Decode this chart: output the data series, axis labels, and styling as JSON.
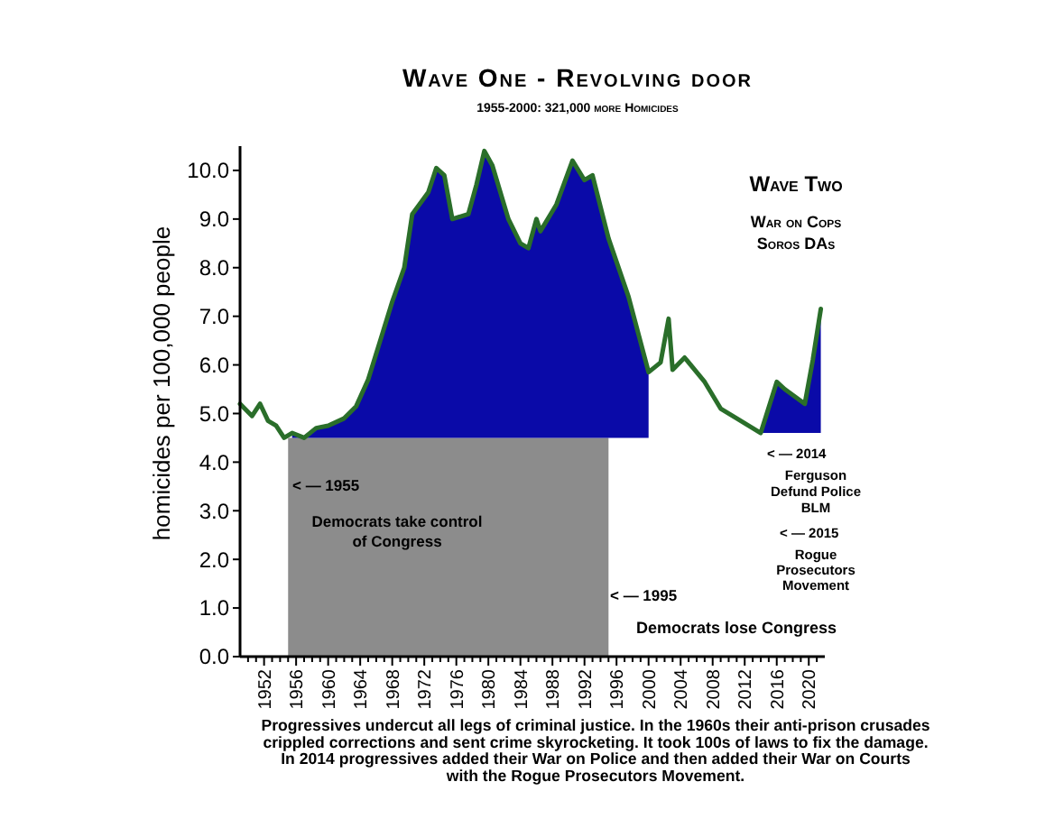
{
  "chart_data": {
    "type": "line",
    "title": "Wave One - Revolving door",
    "subtitle": "1955-2000: 321,000 more Homicides",
    "ylabel": "homicides per 100,000 people",
    "xlim": [
      1949,
      2022
    ],
    "ylim": [
      0,
      10.5
    ],
    "yticks": [
      {
        "value": 0,
        "label": "0.0"
      },
      {
        "value": 1,
        "label": "1.0"
      },
      {
        "value": 2,
        "label": "2.0"
      },
      {
        "value": 3,
        "label": "3.0"
      },
      {
        "value": 4,
        "label": "4.0"
      },
      {
        "value": 5,
        "label": "5.0"
      },
      {
        "value": 6,
        "label": "6.0"
      },
      {
        "value": 7,
        "label": "7.0"
      },
      {
        "value": 8,
        "label": "8.0"
      },
      {
        "value": 9,
        "label": "9.0"
      },
      {
        "value": 10,
        "label": "10.0"
      }
    ],
    "xticks": [
      {
        "value": 1950,
        "label": null
      },
      {
        "value": 1951,
        "label": null
      },
      1952,
      {
        "value": 1953,
        "label": null
      },
      {
        "value": 1954,
        "label": null
      },
      {
        "value": 1955,
        "label": null
      },
      1956,
      {
        "value": 1957,
        "label": null
      },
      {
        "value": 1958,
        "label": null
      },
      {
        "value": 1959,
        "label": null
      },
      1960,
      {
        "value": 1961,
        "label": null
      },
      {
        "value": 1962,
        "label": null
      },
      {
        "value": 1963,
        "label": null
      },
      1964,
      {
        "value": 1965,
        "label": null
      },
      {
        "value": 1966,
        "label": null
      },
      {
        "value": 1967,
        "label": null
      },
      1968,
      {
        "value": 1969,
        "label": null
      },
      {
        "value": 1970,
        "label": null
      },
      {
        "value": 1971,
        "label": null
      },
      1972,
      {
        "value": 1973,
        "label": null
      },
      {
        "value": 1974,
        "label": null
      },
      {
        "value": 1975,
        "label": null
      },
      1976,
      {
        "value": 1977,
        "label": null
      },
      {
        "value": 1978,
        "label": null
      },
      {
        "value": 1979,
        "label": null
      },
      1980,
      {
        "value": 1981,
        "label": null
      },
      {
        "value": 1982,
        "label": null
      },
      {
        "value": 1983,
        "label": null
      },
      1984,
      {
        "value": 1985,
        "label": null
      },
      {
        "value": 1986,
        "label": null
      },
      {
        "value": 1987,
        "label": null
      },
      1988,
      {
        "value": 1989,
        "label": null
      },
      {
        "value": 1990,
        "label": null
      },
      {
        "value": 1991,
        "label": null
      },
      1992,
      {
        "value": 1993,
        "label": null
      },
      {
        "value": 1994,
        "label": null
      },
      {
        "value": 1995,
        "label": null
      },
      1996,
      {
        "value": 1997,
        "label": null
      },
      {
        "value": 1998,
        "label": null
      },
      {
        "value": 1999,
        "label": null
      },
      2000,
      {
        "value": 2001,
        "label": null
      },
      {
        "value": 2002,
        "label": null
      },
      {
        "value": 2003,
        "label": null
      },
      2004,
      {
        "value": 2005,
        "label": null
      },
      {
        "value": 2006,
        "label": null
      },
      {
        "value": 2007,
        "label": null
      },
      2008,
      {
        "value": 2009,
        "label": null
      },
      {
        "value": 2010,
        "label": null
      },
      {
        "value": 2011,
        "label": null
      },
      2012,
      {
        "value": 2013,
        "label": null
      },
      {
        "value": 2014,
        "label": null
      },
      {
        "value": 2015,
        "label": null
      },
      2016,
      {
        "value": 2017,
        "label": null
      },
      {
        "value": 2018,
        "label": null
      },
      {
        "value": 2019,
        "label": null
      },
      2020,
      {
        "value": 2021,
        "label": null
      }
    ],
    "series": [
      {
        "type": "area",
        "color": "#0a0aa8",
        "x": [
          1955.5,
          1957,
          1958.5,
          1960,
          1962,
          1963.5,
          1965,
          1966.5,
          1968,
          1969.5,
          1970.5,
          1972.5,
          1973.5,
          1974.5,
          1975.5,
          1977.5,
          1978.5,
          1979.5,
          1980.5,
          1982.5,
          1984,
          1985,
          1986,
          1986.5,
          1988.5,
          1990.5,
          1992,
          1993,
          1995,
          1997.5,
          2000
        ],
        "values": [
          4.6,
          4.5,
          4.7,
          4.75,
          4.9,
          5.15,
          5.7,
          6.5,
          7.3,
          8.0,
          9.1,
          9.55,
          10.05,
          9.9,
          9.0,
          9.1,
          9.7,
          10.4,
          10.1,
          9.0,
          8.5,
          8.4,
          9.0,
          8.75,
          9.3,
          10.2,
          9.8,
          9.9,
          8.6,
          7.4,
          5.85
        ]
      },
      {
        "type": "area",
        "color": "#0a0aa8",
        "x": [
          2014,
          2016,
          2017,
          2019.5,
          2020.5,
          2021.5
        ],
        "values": [
          4.6,
          5.65,
          5.5,
          5.2,
          6.1,
          7.15
        ]
      },
      {
        "type": "line",
        "color": "#2a6e2a",
        "x": [
          1949,
          1950.5,
          1951.5,
          1952.5,
          1953.5,
          1954.5,
          1955.5,
          1957,
          1958.5,
          1960,
          1962,
          1963.5,
          1965,
          1966.5,
          1968,
          1969.5,
          1970.5,
          1972.5,
          1973.5,
          1974.5,
          1975.5,
          1977.5,
          1978.5,
          1979.5,
          1980.5,
          1982.5,
          1984,
          1985,
          1986,
          1986.5,
          1988.5,
          1990.5,
          1992,
          1993,
          1995,
          1997.5,
          2000,
          2001.5,
          2002.5,
          2003,
          2004.5,
          2007,
          2009,
          2011,
          2014,
          2016,
          2017,
          2019.5,
          2020.5,
          2021.5
        ],
        "values": [
          5.2,
          4.95,
          5.2,
          4.85,
          4.75,
          4.5,
          4.6,
          4.5,
          4.7,
          4.75,
          4.9,
          5.15,
          5.7,
          6.5,
          7.3,
          8.0,
          9.1,
          9.55,
          10.05,
          9.9,
          9.0,
          9.1,
          9.7,
          10.4,
          10.1,
          9.0,
          8.5,
          8.4,
          9.0,
          8.75,
          9.3,
          10.2,
          9.8,
          9.9,
          8.6,
          7.4,
          5.85,
          6.05,
          6.95,
          5.9,
          6.15,
          5.65,
          5.1,
          4.9,
          4.6,
          5.65,
          5.5,
          5.2,
          6.1,
          7.15
        ]
      }
    ],
    "bands": [
      {
        "axis": "x",
        "from": 1955,
        "to": 1995,
        "color": "#8c8c8c"
      }
    ],
    "line_style": "solid",
    "marker": "none",
    "grid": false,
    "annotations": [
      "Wave Two",
      "War on Cops\nSoros DAs",
      "< — 2014",
      "Ferguson\nDefund Police\nBLM",
      "< — 2015",
      "Rogue\nProsecutors\nMovement",
      "< — 1955",
      "Democrats take control\nof Congress",
      "< — 1995",
      "Democrats lose Congress",
      "Progressives undercut all legs of criminal justice. In the 1960s their anti-prison crusades\ncrippled corrections and sent crime skyrocketing.  It took 100s of laws to fix the damage.\nIn 2014 progressives added their War on Police and then added their War on Courts\nwith the Rogue Prosecutors Movement."
    ]
  }
}
